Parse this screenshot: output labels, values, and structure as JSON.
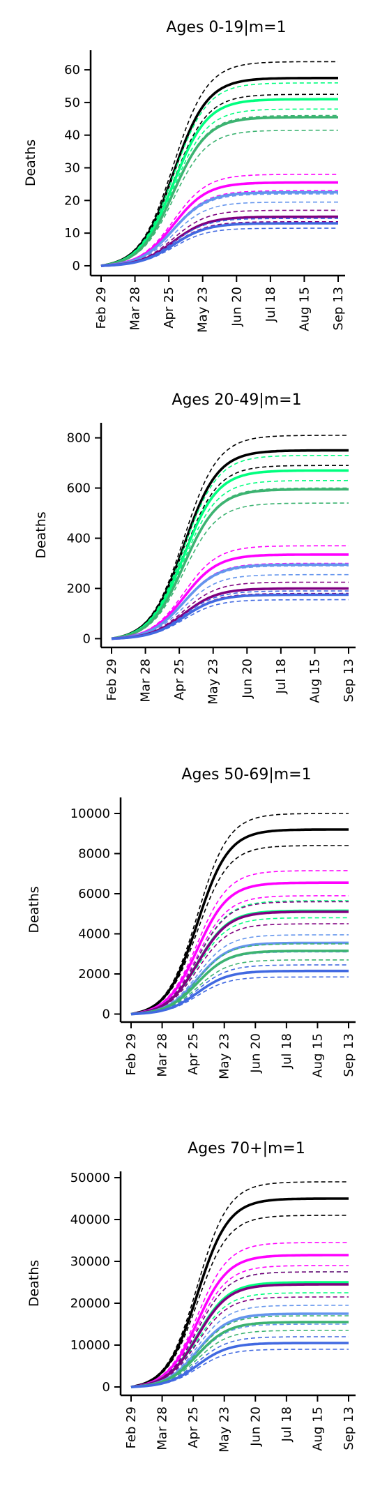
{
  "chart_data": [
    {
      "type": "line",
      "title": "Ages 0-19|m=1",
      "ylabel": "Deaths",
      "xlabel": "",
      "x_ticks": [
        "Feb 29",
        "Mar 28",
        "Apr 25",
        "May 23",
        "Jun 20",
        "Jul 18",
        "Aug 15",
        "Sep 13"
      ],
      "y_ticks": [
        0,
        10,
        20,
        30,
        40,
        50,
        60
      ],
      "ylim": [
        -3,
        66
      ],
      "series": [
        {
          "color": "#000000",
          "final": 57.5,
          "low": 52.5,
          "high": 62.5
        },
        {
          "color": "#00ff7f",
          "final": 51,
          "low": 48,
          "high": 56
        },
        {
          "color": "#3cb371",
          "final": 45.5,
          "low": 41.5,
          "high": 46
        },
        {
          "color": "#ff00ff",
          "final": 25.5,
          "low": 23,
          "high": 28
        },
        {
          "color": "#6495ed",
          "final": 22.5,
          "low": 19.5,
          "high": 22
        },
        {
          "color": "#800080",
          "final": 15,
          "low": 13.5,
          "high": 17
        },
        {
          "color": "#4169e1",
          "final": 13,
          "low": 11.5,
          "high": 14.5
        }
      ]
    },
    {
      "type": "line",
      "title": "Ages 20-49|m=1",
      "ylabel": "Deaths",
      "xlabel": "",
      "x_ticks": [
        "Feb 29",
        "Mar 28",
        "Apr 25",
        "May 23",
        "Jun 20",
        "Jul 18",
        "Aug 15",
        "Sep 13"
      ],
      "y_ticks": [
        0,
        200,
        400,
        600,
        800
      ],
      "ylim": [
        -35,
        860
      ],
      "series": [
        {
          "color": "#000000",
          "final": 750,
          "low": 690,
          "high": 810
        },
        {
          "color": "#00ff7f",
          "final": 670,
          "low": 630,
          "high": 730
        },
        {
          "color": "#3cb371",
          "final": 595,
          "low": 540,
          "high": 600
        },
        {
          "color": "#ff00ff",
          "final": 335,
          "low": 300,
          "high": 370
        },
        {
          "color": "#6495ed",
          "final": 295,
          "low": 255,
          "high": 290
        },
        {
          "color": "#800080",
          "final": 200,
          "low": 180,
          "high": 225
        },
        {
          "color": "#4169e1",
          "final": 175,
          "low": 155,
          "high": 190
        }
      ]
    },
    {
      "type": "line",
      "title": "Ages 50-69|m=1",
      "ylabel": "Deaths",
      "xlabel": "",
      "x_ticks": [
        "Feb 29",
        "Mar 28",
        "Apr 25",
        "May 23",
        "Jun 20",
        "Jul 18",
        "Aug 15",
        "Sep 13"
      ],
      "y_ticks": [
        0,
        2000,
        4000,
        6000,
        8000,
        10000
      ],
      "ylim": [
        -400,
        10800
      ],
      "series": [
        {
          "color": "#000000",
          "final": 9200,
          "low": 8400,
          "high": 10000
        },
        {
          "color": "#ff00ff",
          "final": 6550,
          "low": 5900,
          "high": 7150
        },
        {
          "color": "#00ff7f",
          "final": 5150,
          "low": 4800,
          "high": 5650
        },
        {
          "color": "#800080",
          "final": 5100,
          "low": 4500,
          "high": 5600
        },
        {
          "color": "#6495ed",
          "final": 3550,
          "low": 3100,
          "high": 3950
        },
        {
          "color": "#3cb371",
          "final": 3150,
          "low": 2700,
          "high": 3500
        },
        {
          "color": "#4169e1",
          "final": 2150,
          "low": 1850,
          "high": 2450
        }
      ]
    },
    {
      "type": "line",
      "title": "Ages 70+|m=1",
      "ylabel": "Deaths",
      "xlabel": "",
      "x_ticks": [
        "Feb 29",
        "Mar 28",
        "Apr 25",
        "May 23",
        "Jun 20",
        "Jul 18",
        "Aug 15",
        "Sep 13"
      ],
      "y_ticks": [
        0,
        10000,
        20000,
        30000,
        40000,
        50000
      ],
      "ylim": [
        -2000,
        51500
      ],
      "series": [
        {
          "color": "#000000",
          "final": 45000,
          "low": 41000,
          "high": 49000
        },
        {
          "color": "#ff00ff",
          "final": 31500,
          "low": 29000,
          "high": 34500
        },
        {
          "color": "#00ff7f",
          "final": 25000,
          "low": 22500,
          "high": 27500
        },
        {
          "color": "#800080",
          "final": 24500,
          "low": 21500,
          "high": 27500
        },
        {
          "color": "#6495ed",
          "final": 17500,
          "low": 15000,
          "high": 19500
        },
        {
          "color": "#3cb371",
          "final": 15500,
          "low": 13500,
          "high": 17000
        },
        {
          "color": "#4169e1",
          "final": 10500,
          "low": 9000,
          "high": 12000
        }
      ]
    }
  ]
}
